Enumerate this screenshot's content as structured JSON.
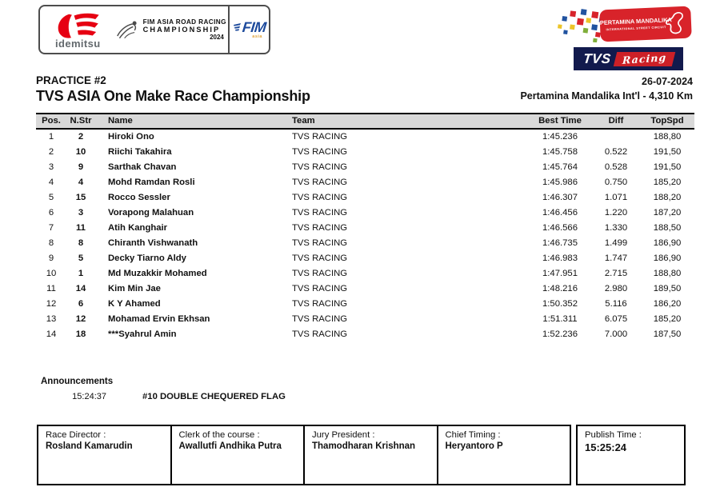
{
  "header": {
    "logo_left": {
      "idemitsu_label": "idemitsu",
      "championship_line1": "FIM ASIA ROAD RACING",
      "championship_line2": "CHAMPIONSHIP",
      "championship_year": "2024",
      "fim_label": "FIM",
      "fim_sub_label": "asia"
    },
    "logo_right": {
      "circuit_line1": "PERTAMINA MANDALIKA",
      "circuit_line2": "INTERNATIONAL STREET CIRCUIT",
      "tvs_label": "TVS",
      "racing_label": "Racing"
    }
  },
  "title": {
    "session": "PRACTICE #2",
    "championship": "TVS ASIA One Make Race Championship",
    "date": "26-07-2024",
    "circuit": "Pertamina Mandalika Int'l - 4,310 Km"
  },
  "table": {
    "columns": [
      "Pos.",
      "N.Str",
      "Name",
      "Team",
      "Best Time",
      "Diff",
      "TopSpd"
    ],
    "rows": [
      [
        "1",
        "2",
        "Hiroki Ono",
        "TVS RACING",
        "1:45.236",
        "",
        "188,80"
      ],
      [
        "2",
        "10",
        "Riichi Takahira",
        "TVS RACING",
        "1:45.758",
        "0.522",
        "191,50"
      ],
      [
        "3",
        "9",
        "Sarthak Chavan",
        "TVS RACING",
        "1:45.764",
        "0.528",
        "191,50"
      ],
      [
        "4",
        "4",
        "Mohd Ramdan Rosli",
        "TVS RACING",
        "1:45.986",
        "0.750",
        "185,20"
      ],
      [
        "5",
        "15",
        "Rocco Sessler",
        "TVS RACING",
        "1:46.307",
        "1.071",
        "188,20"
      ],
      [
        "6",
        "3",
        "Vorapong Malahuan",
        "TVS RACING",
        "1:46.456",
        "1.220",
        "187,20"
      ],
      [
        "7",
        "11",
        "Atih Kanghair",
        "TVS RACING",
        "1:46.566",
        "1.330",
        "188,50"
      ],
      [
        "8",
        "8",
        "Chiranth Vishwanath",
        "TVS RACING",
        "1:46.735",
        "1.499",
        "186,90"
      ],
      [
        "9",
        "5",
        "Decky Tiarno Aldy",
        "TVS RACING",
        "1:46.983",
        "1.747",
        "186,90"
      ],
      [
        "10",
        "1",
        "Md Muzakkir Mohamed",
        "TVS RACING",
        "1:47.951",
        "2.715",
        "188,80"
      ],
      [
        "11",
        "14",
        "Kim Min Jae",
        "TVS RACING",
        "1:48.216",
        "2.980",
        "189,50"
      ],
      [
        "12",
        "6",
        "K Y Ahamed",
        "TVS RACING",
        "1:50.352",
        "5.116",
        "186,20"
      ],
      [
        "13",
        "12",
        "Mohamad Ervin Ekhsan",
        "TVS RACING",
        "1:51.311",
        "6.075",
        "185,20"
      ],
      [
        "14",
        "18",
        "***Syahrul Amin",
        "TVS RACING",
        "1:52.236",
        "7.000",
        "187,50"
      ]
    ]
  },
  "announcements": {
    "heading": "Announcements",
    "items": [
      {
        "time": "15:24:37",
        "message": "#10 DOUBLE CHEQUERED FLAG"
      }
    ]
  },
  "footer": {
    "officials": [
      {
        "role": "Race Director :",
        "name": "Rosland Kamarudin"
      },
      {
        "role": "Clerk of the course :",
        "name": "Awallutfi Andhika Putra"
      },
      {
        "role": "Jury President :",
        "name": "Thamodharan Krishnan"
      },
      {
        "role": "Chief Timing :",
        "name": "Heryantoro P"
      }
    ],
    "publish": {
      "label": "Publish Time :",
      "time": "15:25:24"
    }
  },
  "colors": {
    "header_gray": "#d9d9d9",
    "idemitsu_red": "#e60012",
    "fim_blue": "#1d4a9c",
    "mandalika_red": "#d8232a",
    "tvs_navy": "#121a4d",
    "tvs_red": "#cc2027"
  }
}
